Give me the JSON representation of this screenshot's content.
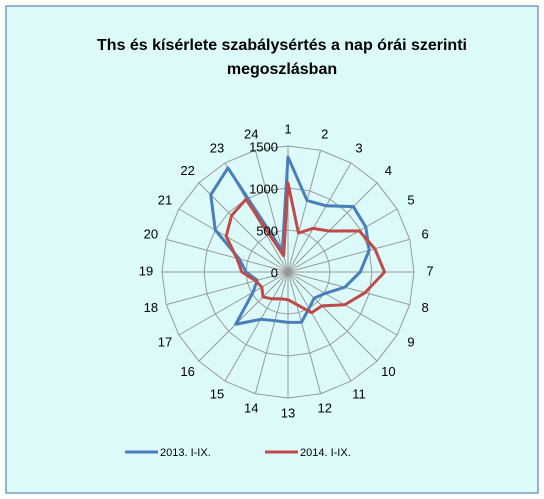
{
  "chart_data": {
    "type": "radar",
    "title": "Ths és kísérlete szabálysértés a nap órái szerinti megoszlásban",
    "categories": [
      "1",
      "2",
      "3",
      "4",
      "5",
      "6",
      "7",
      "8",
      "9",
      "10",
      "11",
      "12",
      "13",
      "14",
      "15",
      "16",
      "17",
      "18",
      "19",
      "20",
      "21",
      "22",
      "23",
      "24"
    ],
    "series": [
      {
        "name": "2013. I-IX.",
        "color": "#4a7ebb",
        "values": [
          1370,
          880,
          910,
          1100,
          1070,
          1000,
          860,
          700,
          510,
          440,
          500,
          620,
          600,
          600,
          650,
          880,
          480,
          380,
          500,
          600,
          1000,
          1300,
          1430,
          260
        ]
      },
      {
        "name": "2014. I-IX.",
        "color": "#be4b48",
        "values": [
          1060,
          480,
          600,
          690,
          980,
          1070,
          1150,
          950,
          780,
          570,
          560,
          400,
          330,
          330,
          370,
          420,
          360,
          400,
          550,
          630,
          850,
          950,
          1000,
          200
        ]
      }
    ],
    "ylim": [
      0,
      1500
    ],
    "yticks": [
      0,
      500,
      1000,
      1500
    ],
    "grid": true,
    "legend": "bottom"
  }
}
